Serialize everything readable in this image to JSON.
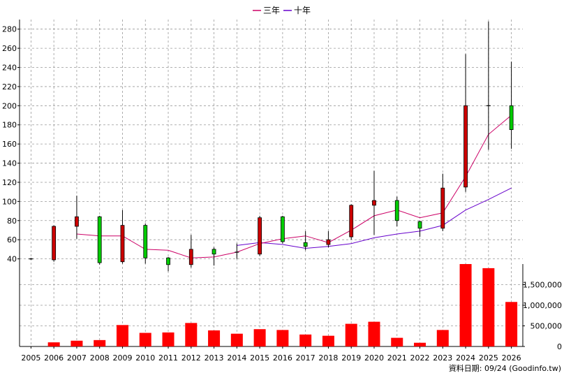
{
  "chart_data": {
    "type": "candlestick-with-volume",
    "legend": [
      {
        "name": "三年",
        "color": "#cc0066"
      },
      {
        "name": "十年",
        "color": "#6600cc"
      }
    ],
    "years": [
      "2005",
      "2006",
      "2007",
      "2008",
      "2009",
      "2010",
      "2011",
      "2012",
      "2013",
      "2014",
      "2015",
      "2016",
      "2017",
      "2018",
      "2019",
      "2020",
      "2021",
      "2022",
      "2023",
      "2024",
      "2025",
      "2026"
    ],
    "candles": [
      {
        "open": 40,
        "close": 40,
        "high": 41,
        "low": 39
      },
      {
        "open": 39,
        "close": 74,
        "high": 75,
        "low": 37
      },
      {
        "open": 74,
        "close": 84,
        "high": 106,
        "low": 61
      },
      {
        "open": 84,
        "close": 36,
        "high": 85,
        "low": 34
      },
      {
        "open": 37,
        "close": 75,
        "high": 91,
        "low": 35
      },
      {
        "open": 75,
        "close": 41,
        "high": 77,
        "low": 35
      },
      {
        "open": 41,
        "close": 34,
        "high": 42,
        "low": 27
      },
      {
        "open": 34,
        "close": 50,
        "high": 65,
        "low": 31
      },
      {
        "open": 50,
        "close": 45,
        "high": 52,
        "low": 33
      },
      {
        "open": 47,
        "close": 47,
        "high": 56,
        "low": 40
      },
      {
        "open": 45,
        "close": 83,
        "high": 85,
        "low": 43
      },
      {
        "open": 84,
        "close": 58,
        "high": 85,
        "low": 56
      },
      {
        "open": 57,
        "close": 53,
        "high": 69,
        "low": 49
      },
      {
        "open": 55,
        "close": 60,
        "high": 69,
        "low": 52
      },
      {
        "open": 63,
        "close": 96,
        "high": 97,
        "low": 60
      },
      {
        "open": 96,
        "close": 101,
        "high": 132,
        "low": 65
      },
      {
        "open": 101,
        "close": 80,
        "high": 105,
        "low": 74
      },
      {
        "open": 79,
        "close": 72,
        "high": 80,
        "low": 63
      },
      {
        "open": 72,
        "close": 114,
        "high": 129,
        "low": 69
      },
      {
        "open": 115,
        "close": 200,
        "high": 254,
        "low": 110
      },
      {
        "open": 200,
        "close": 200,
        "high": 288,
        "low": 154
      },
      {
        "open": 200,
        "close": 175,
        "high": 246,
        "low": 155
      }
    ],
    "ma3": [
      null,
      null,
      66,
      64,
      64,
      50,
      49,
      41,
      42,
      47,
      56,
      61,
      64,
      57,
      70,
      85,
      91,
      83,
      88,
      126,
      170,
      190
    ],
    "ma10": [
      null,
      null,
      null,
      null,
      null,
      null,
      null,
      null,
      null,
      54,
      57,
      55,
      51,
      53,
      56,
      62,
      66,
      69,
      75,
      91,
      102,
      114
    ],
    "volume": [
      0,
      100000,
      140000,
      155000,
      520000,
      330000,
      340000,
      570000,
      390000,
      310000,
      420000,
      400000,
      290000,
      260000,
      550000,
      600000,
      210000,
      90000,
      400000,
      2000000,
      1900000,
      1080000
    ],
    "price_axis": {
      "min": 20,
      "max": 290,
      "ticks": [
        40,
        60,
        80,
        100,
        120,
        140,
        160,
        180,
        200,
        220,
        240,
        260,
        280
      ]
    },
    "volume_axis": {
      "min": 0,
      "max": 2000000,
      "ticks": [
        0,
        500000,
        1000000,
        1500000
      ],
      "tick_labels": [
        "0",
        "500,000",
        "1,000,000",
        "1,500,000"
      ]
    },
    "grid": true,
    "up_color": "#cc0000",
    "down_color": "#00cc00",
    "volume_color": "#ff0000"
  },
  "footer": {
    "text": "資料日期: 09/24 (Goodinfo.tw)"
  }
}
